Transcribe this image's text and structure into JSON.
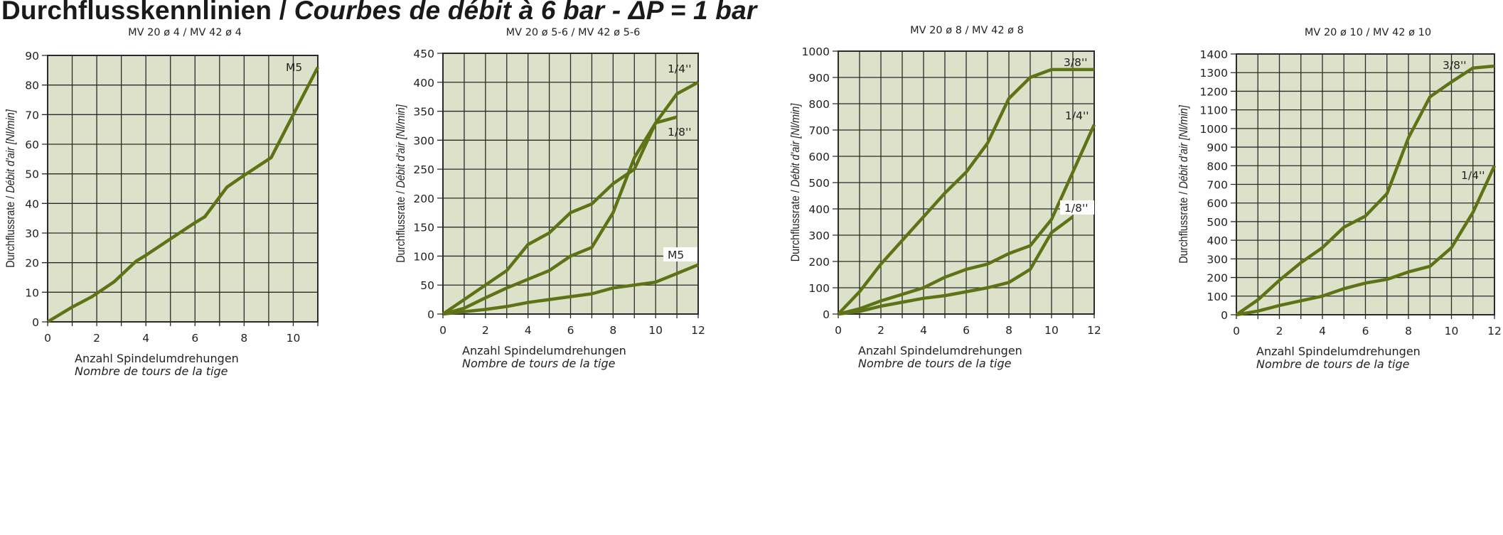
{
  "title": {
    "de": "Durchflusskennlinien",
    "sep": " / ",
    "fr": "Courbes de débit à 6 bar - ΔP = 1 bar"
  },
  "colors": {
    "plot_background": "#dde1ca",
    "grid": "#2a2a2a",
    "line": "#5e7316"
  },
  "chart_data": [
    {
      "type": "line",
      "title": "MV 20 ø 4 / MV 42 ø 4",
      "xlabel_de": "Anzahl Spindelumdrehungen",
      "xlabel_fr": "Nombre de tours de la tige",
      "ylabel_de": "Durchflussrate / ",
      "ylabel_fr": "Débit d'air [Nl/min]",
      "xlim": [
        0,
        11
      ],
      "ylim": [
        0,
        90
      ],
      "grid": true,
      "xticks": [
        "0",
        "2",
        "4",
        "6",
        "8",
        "10"
      ],
      "yticks": [
        "0",
        "10",
        "20",
        "30",
        "40",
        "50",
        "60",
        "70",
        "80",
        "90"
      ],
      "series": [
        {
          "name": "M5",
          "points": [
            [
              0,
              0
            ],
            [
              1,
              5
            ],
            [
              1.8,
              8.5
            ],
            [
              2.7,
              13.5
            ],
            [
              3.6,
              20.5
            ],
            [
              4,
              22.5
            ],
            [
              5,
              28
            ],
            [
              6,
              33.5
            ],
            [
              6.4,
              35.5
            ],
            [
              7.3,
              45.5
            ],
            [
              8,
              49.5
            ],
            [
              9.1,
              55.5
            ],
            [
              10,
              70
            ],
            [
              11,
              86
            ]
          ]
        }
      ]
    },
    {
      "type": "line",
      "title": "MV 20 ø 5-6 / MV 42 ø 5-6",
      "xlabel_de": "Anzahl Spindelumdrehungen",
      "xlabel_fr": "Nombre de tours de la tige",
      "ylabel_de": "Durchflussrate / ",
      "ylabel_fr": "Débit d'air [Nl/min]",
      "xlim": [
        0,
        12
      ],
      "ylim": [
        0,
        450
      ],
      "grid": true,
      "xticks": [
        "0",
        "2",
        "4",
        "6",
        "8",
        "10",
        "12"
      ],
      "yticks": [
        "0",
        "50",
        "100",
        "150",
        "200",
        "250",
        "300",
        "350",
        "400",
        "450"
      ],
      "series": [
        {
          "name": "1/4''",
          "points": [
            [
              0,
              0
            ],
            [
              1,
              25
            ],
            [
              2,
              50
            ],
            [
              3,
              75
            ],
            [
              4,
              120
            ],
            [
              5,
              140
            ],
            [
              6,
              175
            ],
            [
              7,
              190
            ],
            [
              8,
              225
            ],
            [
              9,
              250
            ],
            [
              10,
              330
            ],
            [
              11,
              380
            ],
            [
              12,
              400
            ]
          ]
        },
        {
          "name": "1/8''",
          "points": [
            [
              0,
              0
            ],
            [
              1,
              10
            ],
            [
              2,
              28
            ],
            [
              3,
              45
            ],
            [
              4,
              60
            ],
            [
              5,
              75
            ],
            [
              6,
              100
            ],
            [
              7,
              115
            ],
            [
              8,
              175
            ],
            [
              9,
              270
            ],
            [
              10,
              330
            ],
            [
              11,
              340
            ]
          ]
        },
        {
          "name": "M5",
          "points": [
            [
              0,
              0
            ],
            [
              1,
              4
            ],
            [
              2,
              8
            ],
            [
              3,
              13
            ],
            [
              4,
              20
            ],
            [
              5,
              25
            ],
            [
              6,
              30
            ],
            [
              7,
              35
            ],
            [
              8,
              45
            ],
            [
              9,
              50
            ],
            [
              10,
              55
            ],
            [
              11,
              70
            ],
            [
              12,
              85
            ]
          ]
        }
      ]
    },
    {
      "type": "line",
      "title": "MV 20 ø 8 / MV 42 ø 8",
      "xlabel_de": "Anzahl Spindelumdrehungen",
      "xlabel_fr": "Nombre de tours de la tige",
      "ylabel_de": "Durchflussrate / ",
      "ylabel_fr": "Débit d'air [Nl/min]",
      "xlim": [
        0,
        12
      ],
      "ylim": [
        0,
        1000
      ],
      "grid": true,
      "xticks": [
        "0",
        "2",
        "4",
        "6",
        "8",
        "10",
        "12"
      ],
      "yticks": [
        "0",
        "100",
        "200",
        "300",
        "400",
        "500",
        "600",
        "700",
        "800",
        "900",
        "1000"
      ],
      "series": [
        {
          "name": "3/8''",
          "points": [
            [
              0,
              0
            ],
            [
              1,
              85
            ],
            [
              2,
              190
            ],
            [
              3,
              280
            ],
            [
              4,
              370
            ],
            [
              5,
              460
            ],
            [
              6,
              540
            ],
            [
              7,
              650
            ],
            [
              8,
              820
            ],
            [
              9,
              900
            ],
            [
              10,
              930
            ],
            [
              12,
              930
            ]
          ]
        },
        {
          "name": "1/4''",
          "points": [
            [
              0,
              0
            ],
            [
              1,
              20
            ],
            [
              2,
              50
            ],
            [
              3,
              75
            ],
            [
              4,
              100
            ],
            [
              5,
              140
            ],
            [
              6,
              170
            ],
            [
              7,
              190
            ],
            [
              8,
              230
            ],
            [
              9,
              260
            ],
            [
              10,
              360
            ],
            [
              11,
              540
            ],
            [
              12,
              720
            ]
          ]
        },
        {
          "name": "1/8''",
          "points": [
            [
              0,
              0
            ],
            [
              1,
              10
            ],
            [
              2,
              30
            ],
            [
              3,
              45
            ],
            [
              4,
              60
            ],
            [
              5,
              70
            ],
            [
              6,
              85
            ],
            [
              7,
              100
            ],
            [
              8,
              120
            ],
            [
              9,
              170
            ],
            [
              10,
              310
            ],
            [
              11,
              370
            ]
          ]
        }
      ]
    },
    {
      "type": "line",
      "title": "MV 20 ø 10 / MV 42 ø 10",
      "xlabel_de": "Anzahl Spindelumdrehungen",
      "xlabel_fr": "Nombre de tours de la tige",
      "ylabel_de": "Durchflussrate / ",
      "ylabel_fr": "Débit d'air [Nl/min]",
      "xlim": [
        0,
        12
      ],
      "ylim": [
        0,
        1400
      ],
      "grid": true,
      "xticks": [
        "0",
        "2",
        "4",
        "6",
        "8",
        "10",
        "12"
      ],
      "yticks": [
        "0",
        "100",
        "200",
        "300",
        "400",
        "500",
        "600",
        "700",
        "800",
        "900",
        "1000",
        "1100",
        "1200",
        "1300",
        "1400"
      ],
      "series": [
        {
          "name": "3/8''",
          "points": [
            [
              0,
              0
            ],
            [
              1,
              80
            ],
            [
              2,
              185
            ],
            [
              3,
              280
            ],
            [
              4,
              360
            ],
            [
              5,
              470
            ],
            [
              6,
              530
            ],
            [
              7,
              650
            ],
            [
              8,
              950
            ],
            [
              9,
              1170
            ],
            [
              10,
              1250
            ],
            [
              11,
              1325
            ],
            [
              12,
              1335
            ]
          ]
        },
        {
          "name": "1/4''",
          "points": [
            [
              0,
              0
            ],
            [
              1,
              20
            ],
            [
              2,
              50
            ],
            [
              3,
              75
            ],
            [
              4,
              100
            ],
            [
              5,
              140
            ],
            [
              6,
              170
            ],
            [
              7,
              190
            ],
            [
              8,
              230
            ],
            [
              9,
              260
            ],
            [
              10,
              360
            ],
            [
              11,
              550
            ],
            [
              12,
              800
            ]
          ]
        }
      ]
    }
  ]
}
